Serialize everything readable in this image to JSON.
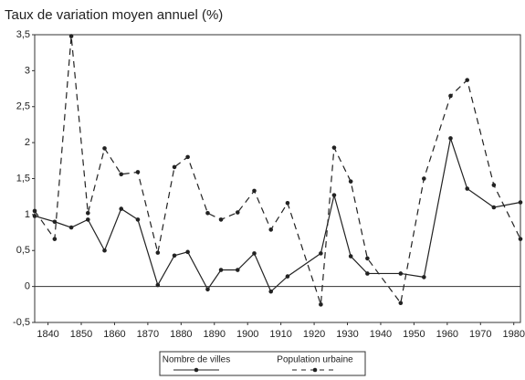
{
  "chart_data": {
    "type": "line",
    "title": "Taux de variation moyen annuel (%)",
    "x": [
      1836,
      1842,
      1847,
      1852,
      1857,
      1862,
      1867,
      1873,
      1878,
      1882,
      1888,
      1892,
      1897,
      1902,
      1907,
      1912,
      1922,
      1926,
      1931,
      1936,
      1946,
      1953,
      1961,
      1966,
      1974,
      1982
    ],
    "series": [
      {
        "name": "Nombre de villes",
        "color": "#222222",
        "style": "solid",
        "values": [
          0.98,
          0.9,
          0.82,
          0.93,
          0.5,
          1.08,
          0.93,
          0.02,
          0.43,
          0.48,
          -0.04,
          0.23,
          0.23,
          0.46,
          -0.07,
          0.14,
          0.46,
          1.27,
          0.42,
          0.18,
          0.18,
          0.13,
          2.06,
          1.36,
          1.1,
          1.17
        ]
      },
      {
        "name": "Population urbaine",
        "color": "#222222",
        "style": "dashed",
        "values": [
          1.05,
          0.66,
          3.48,
          1.02,
          1.92,
          1.56,
          1.59,
          0.47,
          1.66,
          1.8,
          1.02,
          0.93,
          1.03,
          1.33,
          0.79,
          1.16,
          -0.25,
          1.93,
          1.46,
          0.39,
          -0.23,
          1.5,
          2.65,
          2.87,
          1.41,
          0.66
        ]
      }
    ],
    "xlim": [
      1836,
      1982
    ],
    "xticks": [
      1840,
      1850,
      1860,
      1870,
      1880,
      1890,
      1900,
      1910,
      1920,
      1930,
      1940,
      1950,
      1960,
      1970,
      1980
    ],
    "ylim": [
      -0.5,
      3.5
    ],
    "yticks": [
      {
        "value": 3.5,
        "label": "3,5"
      },
      3,
      {
        "value": 2.5,
        "label": "2,5"
      },
      2,
      {
        "value": 1.5,
        "label": "1,5"
      },
      1,
      {
        "value": 0.5,
        "label": "0,5"
      },
      0,
      {
        "value": -0.5,
        "label": "-0,5"
      }
    ],
    "grid": false,
    "legend": "bottom"
  }
}
